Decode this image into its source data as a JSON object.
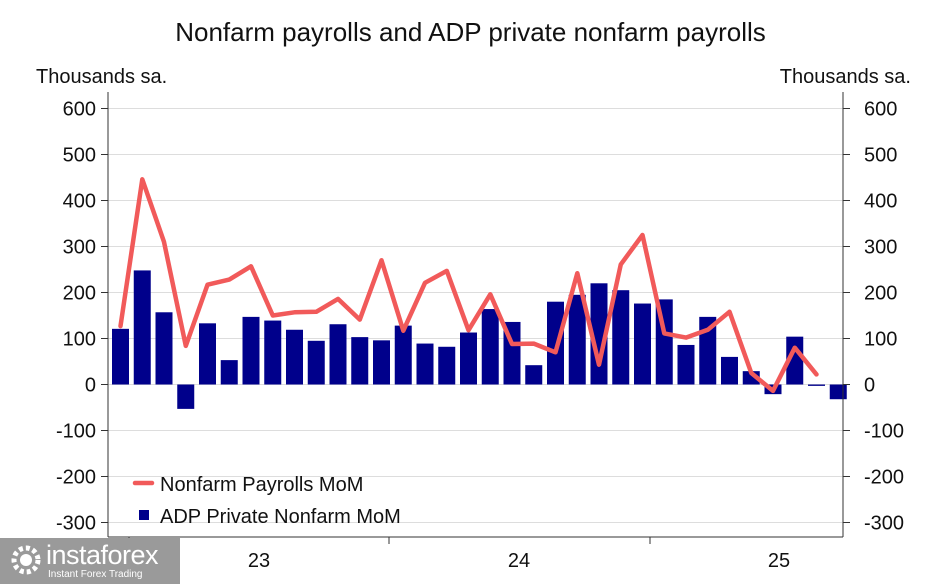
{
  "chart_data": {
    "type": "bar+line",
    "title": "Nonfarm payrolls and ADP private nonfarm payrolls",
    "ylabel_left": "Thousands sa.",
    "ylabel_right": "Thousands sa.",
    "ylim": [
      -320,
      620
    ],
    "yticks": [
      600,
      500,
      400,
      300,
      200,
      100,
      0,
      -100,
      -200,
      -300
    ],
    "xtick_labels": [
      "23",
      "24",
      "25"
    ],
    "grid": true,
    "legend_position": "bottom-left",
    "series": [
      {
        "name": "Nonfarm Payrolls MoM",
        "type": "line",
        "color": "#f15a5a",
        "values": [
          127,
          446,
          310,
          84,
          217,
          228,
          257,
          150,
          157,
          158,
          186,
          141,
          270,
          117,
          221,
          247,
          118,
          196,
          88,
          89,
          70,
          242,
          43,
          261,
          325,
          111,
          102,
          119,
          158,
          25,
          -14,
          80,
          22
        ]
      },
      {
        "name": "ADP Private Nonfarm MoM",
        "type": "bar",
        "color": "#00008b",
        "values": [
          121,
          248,
          157,
          -53,
          133,
          53,
          147,
          139,
          119,
          95,
          131,
          103,
          96,
          128,
          89,
          82,
          113,
          164,
          136,
          42,
          180,
          195,
          220,
          205,
          176,
          185,
          86,
          147,
          60,
          29,
          -21,
          104,
          -3,
          -32
        ]
      }
    ]
  },
  "watermark": {
    "brand": "instaforex",
    "tagline": "Instant Forex Trading"
  }
}
